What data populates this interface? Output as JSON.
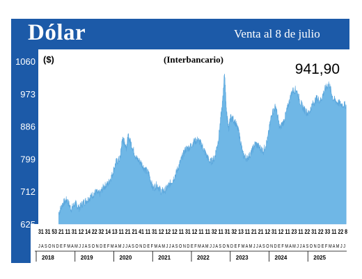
{
  "header": {
    "title": "Dólar",
    "subtitle": "Venta al 8 de julio"
  },
  "chart_data": {
    "type": "area",
    "unit_label": "($)",
    "series_label": "(Interbancario)",
    "last_value_label": "941,90",
    "y_ticks": [
      "1060",
      "973",
      "886",
      "799",
      "712",
      "625"
    ],
    "ylim": [
      625,
      1060
    ],
    "xlim": [
      2018.0,
      2025.55
    ],
    "day_labels": "31 31 53 21 11 31 12 14 22 32 14 13 11 21 21 41 11 31 12 12 12 11 31 12 11 11 32 11 31 32 13 11 21 21 12 31 12 11 23 11 22 31 22 33 11 22 8",
    "month_labels": "J A S O N D E F M A M J J A S O N D E F M A M J J A S O N D E F M A M J J A S O N D E F M A M J J A S O N D E F M A M J J A S O N D E F M A M J J A S O N D E F M A M J J",
    "years": [
      "2018",
      "2019",
      "2020",
      "2021",
      "2022",
      "2023",
      "2024",
      "2025"
    ],
    "x": [
      2018.5,
      2018.6,
      2018.7,
      2018.8,
      2018.9,
      2019.0,
      2019.1,
      2019.2,
      2019.3,
      2019.4,
      2019.5,
      2019.6,
      2019.7,
      2019.8,
      2019.9,
      2020.0,
      2020.05,
      2020.1,
      2020.15,
      2020.2,
      2020.3,
      2020.4,
      2020.5,
      2020.6,
      2020.7,
      2020.8,
      2020.9,
      2021.0,
      2021.1,
      2021.2,
      2021.3,
      2021.4,
      2021.5,
      2021.6,
      2021.7,
      2021.8,
      2021.9,
      2022.0,
      2022.1,
      2022.2,
      2022.3,
      2022.4,
      2022.5,
      2022.55,
      2022.6,
      2022.65,
      2022.7,
      2022.8,
      2022.9,
      2023.0,
      2023.1,
      2023.2,
      2023.3,
      2023.4,
      2023.5,
      2023.6,
      2023.7,
      2023.8,
      2023.9,
      2024.0,
      2024.1,
      2024.2,
      2024.3,
      2024.4,
      2024.5,
      2024.6,
      2024.7,
      2024.8,
      2024.9,
      2025.0,
      2025.1,
      2025.2,
      2025.3,
      2025.4,
      2025.52
    ],
    "y": [
      655,
      680,
      690,
      665,
      680,
      668,
      682,
      690,
      700,
      710,
      705,
      725,
      732,
      755,
      790,
      800,
      850,
      845,
      830,
      860,
      830,
      800,
      790,
      772,
      760,
      720,
      730,
      712,
      715,
      730,
      745,
      770,
      800,
      825,
      830,
      845,
      850,
      835,
      810,
      790,
      800,
      850,
      950,
      1030,
      920,
      880,
      910,
      900,
      870,
      810,
      800,
      815,
      840,
      830,
      820,
      850,
      920,
      940,
      880,
      900,
      940,
      980,
      985,
      950,
      930,
      920,
      945,
      960,
      955,
      985,
      1000,
      960,
      950,
      945,
      942
    ]
  }
}
